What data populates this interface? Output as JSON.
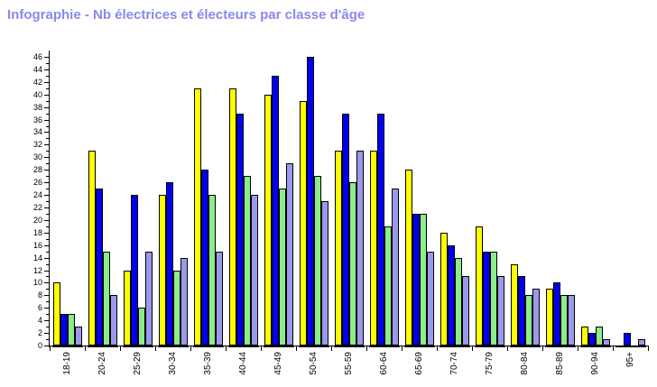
{
  "title": {
    "text": "Infographie - Nb électrices et électeurs par classe d'âge",
    "color": "#8989EC"
  },
  "chart_data": {
    "type": "bar",
    "title": "Infographie - Nb électrices et électeurs par classe d'âge",
    "categories": [
      "18-19",
      "20-24",
      "25-29",
      "30-34",
      "35-39",
      "40-44",
      "45-49",
      "50-54",
      "55-59",
      "60-64",
      "65-69",
      "70-74",
      "75-79",
      "80-84",
      "85-89",
      "90-94",
      "95+"
    ],
    "series": [
      {
        "name": "jaune",
        "color": "#FFFF00",
        "values": [
          10,
          31,
          12,
          24,
          41,
          41,
          40,
          39,
          31,
          31,
          28,
          18,
          19,
          13,
          9,
          3,
          0
        ]
      },
      {
        "name": "bleu",
        "color": "#0000EE",
        "values": [
          5,
          25,
          24,
          26,
          28,
          37,
          43,
          46,
          37,
          37,
          21,
          16,
          15,
          11,
          10,
          2,
          2
        ]
      },
      {
        "name": "vert",
        "color": "#8AEC8A",
        "values": [
          5,
          15,
          6,
          12,
          24,
          27,
          25,
          27,
          26,
          19,
          21,
          14,
          15,
          8,
          8,
          3,
          0
        ]
      },
      {
        "name": "lavande",
        "color": "#9A9AEC",
        "values": [
          3,
          8,
          15,
          14,
          15,
          24,
          29,
          23,
          31,
          25,
          15,
          11,
          11,
          9,
          8,
          1,
          1
        ]
      }
    ],
    "xlabel": "",
    "ylabel": "",
    "ylim": [
      0,
      46
    ],
    "y_ticks": [
      0,
      2,
      4,
      6,
      8,
      10,
      12,
      14,
      16,
      18,
      20,
      22,
      24,
      26,
      28,
      30,
      32,
      34,
      36,
      38,
      40,
      42,
      44,
      46
    ],
    "y_minor_tick_step": 1,
    "grid": false,
    "legend": "none",
    "bar_border_color": "#000000",
    "axis_color": "#000000"
  }
}
